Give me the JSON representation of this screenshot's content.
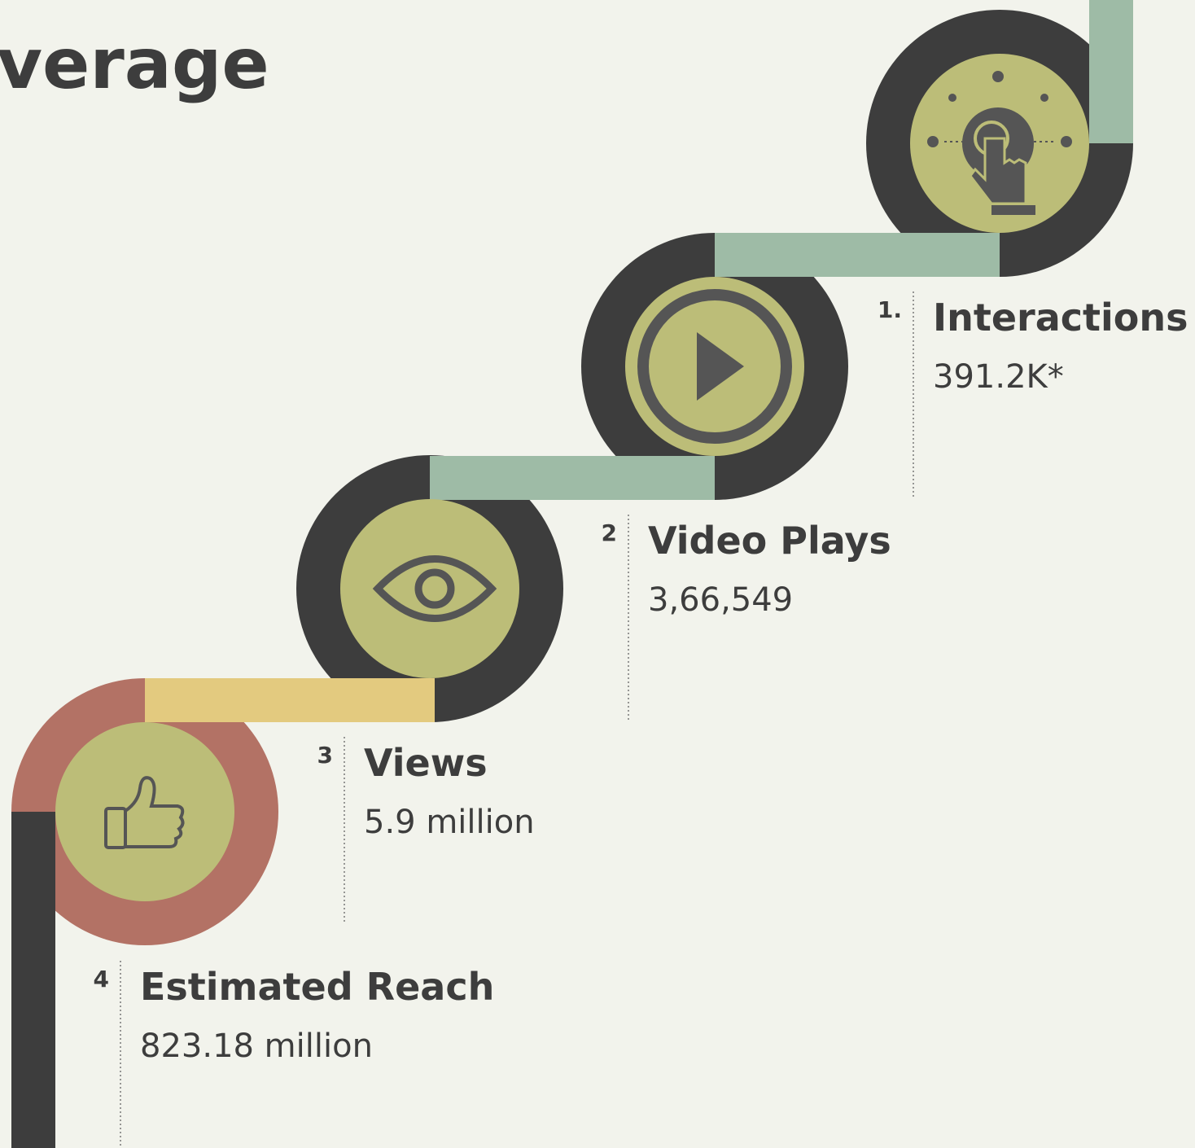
{
  "header": {
    "title": "verage"
  },
  "steps": [
    {
      "number": "1.",
      "label": "Interactions",
      "value": "391.2K*"
    },
    {
      "number": "2",
      "label": "Video Plays",
      "value": "3,66,549"
    },
    {
      "number": "3",
      "label": "Views",
      "value": "5.9 million"
    },
    {
      "number": "4",
      "label": "Estimated Reach",
      "value": "823.18 million"
    }
  ]
}
